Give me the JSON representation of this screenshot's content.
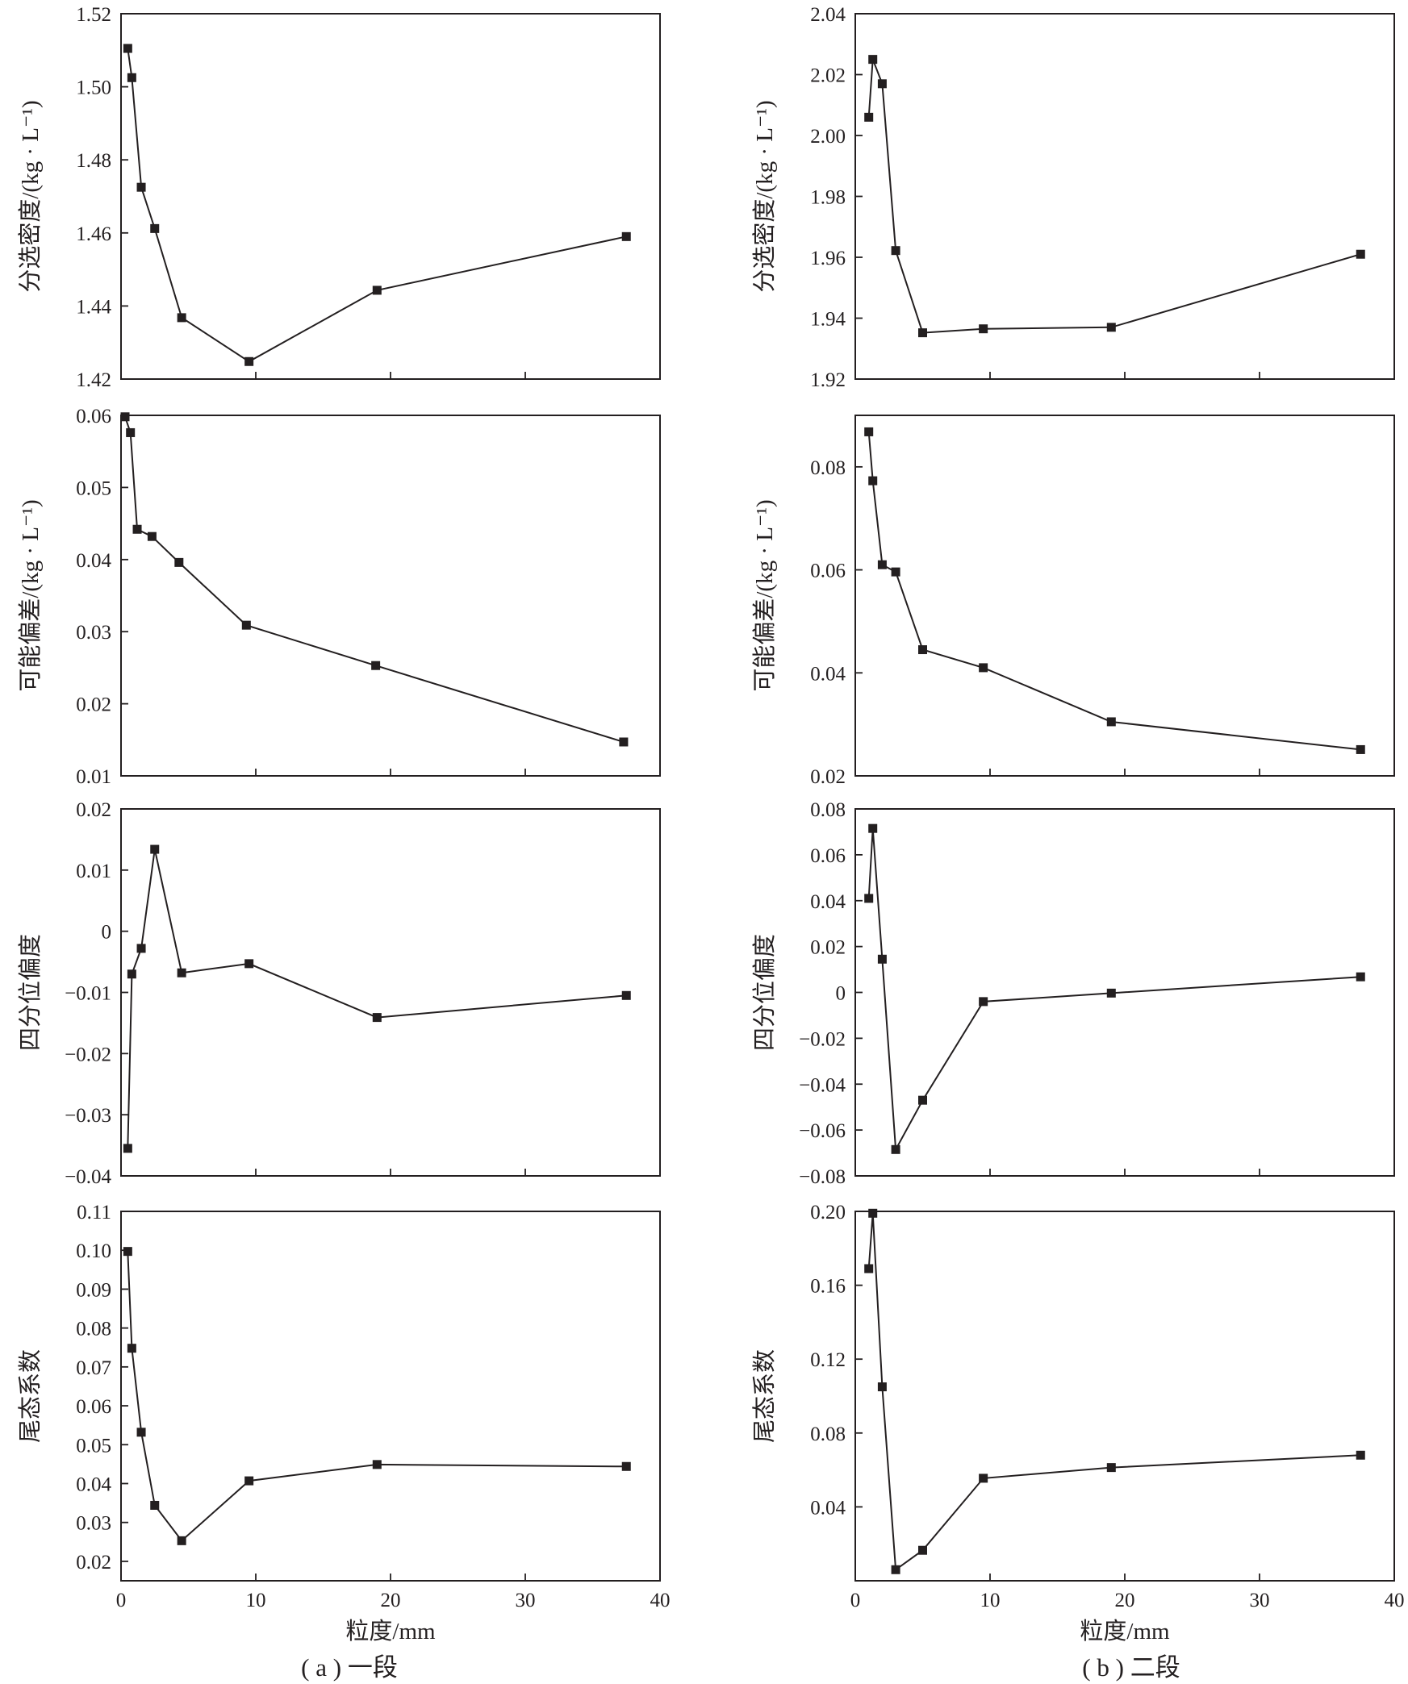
{
  "chart_data": [
    {
      "type": "line",
      "panel": "a",
      "ylabel": "分选密度/(kg · L⁻¹)",
      "xlim": [
        0,
        40
      ],
      "ylim": [
        1.42,
        1.52
      ],
      "yticks": [
        "1.42",
        "1.44",
        "1.46",
        "1.48",
        "1.50",
        "1.52"
      ],
      "series": [
        {
          "x": [
            0.5,
            0.8,
            1.5,
            2.5,
            4.5,
            9.5,
            19,
            37.5
          ],
          "y": [
            1.5105,
            1.5025,
            1.4725,
            1.4612,
            1.4368,
            1.4248,
            1.4443,
            1.459
          ]
        }
      ]
    },
    {
      "type": "line",
      "panel": "a",
      "ylabel": "可能偏差/(kg · L⁻¹)",
      "xlim": [
        0,
        40
      ],
      "ylim": [
        0.01,
        0.06
      ],
      "yticks": [
        "0.01",
        "0.02",
        "0.03",
        "0.04",
        "0.05",
        "0.06"
      ],
      "series": [
        {
          "x": [
            0.3,
            0.7,
            1.2,
            2.3,
            4.3,
            9.3,
            18.9,
            37.3
          ],
          "y": [
            0.0598,
            0.0576,
            0.0442,
            0.0432,
            0.0396,
            0.0309,
            0.0253,
            0.0147
          ]
        }
      ]
    },
    {
      "type": "line",
      "panel": "a",
      "ylabel": "四分位偏度",
      "xlim": [
        0,
        40
      ],
      "ylim": [
        -0.04,
        0.02
      ],
      "yticks": [
        "−0.04",
        "−0.03",
        "−0.02",
        "−0.01",
        "0",
        "0.01",
        "0.02"
      ],
      "series": [
        {
          "x": [
            0.5,
            0.8,
            1.5,
            2.5,
            4.5,
            9.5,
            19,
            37.5
          ],
          "y": [
            -0.0355,
            -0.007,
            -0.0028,
            0.0134,
            -0.0068,
            -0.0053,
            -0.0141,
            -0.0105
          ]
        }
      ]
    },
    {
      "type": "line",
      "panel": "a",
      "ylabel": "尾态系数",
      "xlabel": "粒度/mm",
      "xlim": [
        0,
        40
      ],
      "ylim": [
        0.015,
        0.11
      ],
      "yticks": [
        "0.02",
        "0.03",
        "0.04",
        "0.05",
        "0.06",
        "0.07",
        "0.08",
        "0.09",
        "0.10",
        "0.11"
      ],
      "xticks": [
        "0",
        "10",
        "20",
        "30",
        "40"
      ],
      "series": [
        {
          "x": [
            0.5,
            0.8,
            1.5,
            2.5,
            4.5,
            9.5,
            19,
            37.5
          ],
          "y": [
            0.0997,
            0.0748,
            0.0532,
            0.0344,
            0.0253,
            0.0407,
            0.0449,
            0.0444
          ]
        }
      ]
    },
    {
      "type": "line",
      "panel": "b",
      "ylabel": "分选密度/(kg · L⁻¹)",
      "xlim": [
        0,
        40
      ],
      "ylim": [
        1.92,
        2.04
      ],
      "yticks": [
        "1.92",
        "1.94",
        "1.96",
        "1.98",
        "2.00",
        "2.02",
        "2.04"
      ],
      "series": [
        {
          "x": [
            1.0,
            1.3,
            2.0,
            3.0,
            5.0,
            9.5,
            19,
            37.5
          ],
          "y": [
            2.006,
            2.025,
            2.017,
            1.9622,
            1.9352,
            1.9365,
            1.937,
            1.961
          ]
        }
      ]
    },
    {
      "type": "line",
      "panel": "b",
      "ylabel": "可能偏差/(kg · L⁻¹)",
      "xlim": [
        0,
        40
      ],
      "ylim": [
        0.02,
        0.09
      ],
      "yticks": [
        "0.02",
        "0.04",
        "0.06",
        "0.08"
      ],
      "series": [
        {
          "x": [
            1.0,
            1.3,
            2.0,
            3.0,
            5.0,
            9.5,
            19,
            37.5
          ],
          "y": [
            0.0868,
            0.0773,
            0.061,
            0.0596,
            0.0445,
            0.041,
            0.0305,
            0.0251
          ]
        }
      ]
    },
    {
      "type": "line",
      "panel": "b",
      "ylabel": "四分位偏度",
      "xlim": [
        0,
        40
      ],
      "ylim": [
        -0.08,
        0.08
      ],
      "yticks": [
        "−0.08",
        "−0.06",
        "−0.04",
        "−0.02",
        "0",
        "0.02",
        "0.04",
        "0.06",
        "0.08"
      ],
      "series": [
        {
          "x": [
            1.0,
            1.3,
            2.0,
            3.0,
            5.0,
            9.5,
            19,
            37.5
          ],
          "y": [
            0.041,
            0.0715,
            0.0145,
            -0.0685,
            -0.047,
            -0.004,
            -0.0003,
            0.0068
          ]
        }
      ]
    },
    {
      "type": "line",
      "panel": "b",
      "ylabel": "尾态系数",
      "xlabel": "粒度/mm",
      "xlim": [
        0,
        40
      ],
      "ylim": [
        0.0,
        0.2
      ],
      "yticks": [
        "0.04",
        "0.08",
        "0.12",
        "0.16",
        "0.20"
      ],
      "xticks": [
        "0",
        "10",
        "20",
        "30",
        "40"
      ],
      "series": [
        {
          "x": [
            1.0,
            1.3,
            2.0,
            3.0,
            5.0,
            9.5,
            19,
            37.5
          ],
          "y": [
            0.169,
            0.199,
            0.105,
            0.006,
            0.0165,
            0.0555,
            0.0613,
            0.068
          ]
        }
      ]
    }
  ],
  "captions": {
    "a": "( a ) 一段",
    "b": "( b ) 二段"
  }
}
